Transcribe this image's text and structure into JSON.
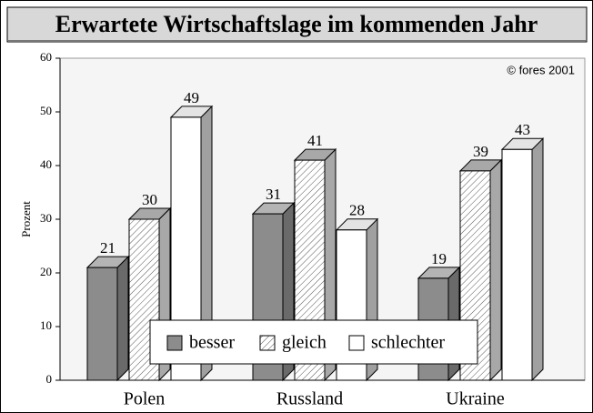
{
  "chart_data": {
    "type": "bar3d",
    "title": "Erwartete Wirtschaftslage im kommenden Jahr",
    "annotation": "© fores 2001",
    "y_label": "Prozent",
    "categories": [
      "Polen",
      "Russland",
      "Ukraine"
    ],
    "series": [
      {
        "name": "besser",
        "color": "#8c8c8c",
        "values": [
          21,
          31,
          19
        ]
      },
      {
        "name": "gleich",
        "color": "#ffffff",
        "pattern": "hatch",
        "values": [
          30,
          41,
          39
        ]
      },
      {
        "name": "schlechter",
        "color": "#ffffff",
        "values": [
          49,
          28,
          43
        ]
      }
    ],
    "ylim": [
      0,
      60
    ],
    "yticks": [
      0,
      10,
      20,
      30,
      40,
      50,
      60
    ]
  }
}
